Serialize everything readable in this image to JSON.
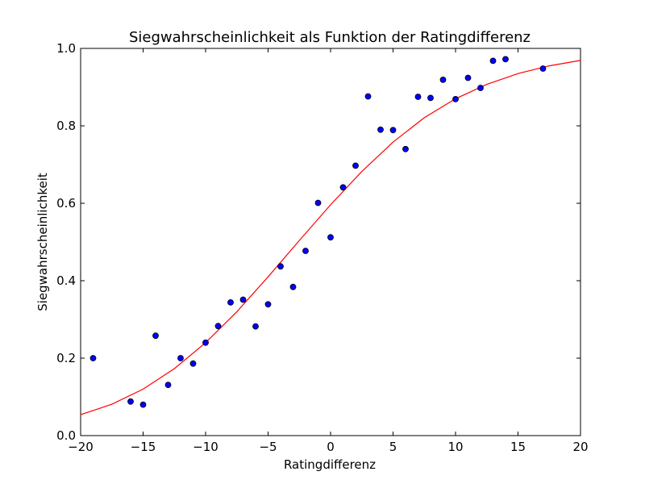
{
  "chart_data": {
    "type": "scatter",
    "title": "Siegwahrscheinlichkeit als Funktion der Ratingdifferenz",
    "xlabel": "Ratingdifferenz",
    "ylabel": "Siegwahrscheinlichkeit",
    "xlim": [
      -20,
      20
    ],
    "ylim": [
      0.0,
      1.0
    ],
    "xticks": [
      "−20",
      "−15",
      "−10",
      "−5",
      "0",
      "5",
      "10",
      "15",
      "20"
    ],
    "yticks": [
      "0.0",
      "0.2",
      "0.4",
      "0.6",
      "0.8",
      "1.0"
    ],
    "grid": false,
    "legend": "none",
    "colors": {
      "points": "#0000ff",
      "curve": "#ff0000"
    },
    "series": [
      {
        "type": "scatter",
        "x": [
          -19,
          -16,
          -15,
          -14,
          -13,
          -12,
          -11,
          -10,
          -9,
          -8,
          -7,
          -6,
          -5,
          -4,
          -3,
          -2,
          -1,
          0,
          1,
          2,
          3,
          4,
          5,
          6,
          7,
          8,
          9,
          10,
          11,
          12,
          13,
          14,
          17
        ],
        "y": [
          0.2,
          0.088,
          0.08,
          0.258,
          0.131,
          0.2,
          0.186,
          0.24,
          0.283,
          0.344,
          0.351,
          0.282,
          0.339,
          0.437,
          0.384,
          0.477,
          0.601,
          0.512,
          0.641,
          0.697,
          0.876,
          0.79,
          0.789,
          0.74,
          0.875,
          0.872,
          0.919,
          0.869,
          0.924,
          0.898,
          0.968,
          0.972,
          0.948
        ]
      },
      {
        "type": "line",
        "x": [
          -20,
          -17.5,
          -15,
          -12.5,
          -10,
          -7.5,
          -5,
          -2.5,
          0,
          2.5,
          5,
          7.5,
          10,
          12.5,
          15,
          17.5,
          20
        ],
        "y": [
          0.054,
          0.081,
          0.12,
          0.173,
          0.24,
          0.32,
          0.41,
          0.504,
          0.596,
          0.682,
          0.758,
          0.821,
          0.87,
          0.907,
          0.935,
          0.955,
          0.969
        ]
      }
    ]
  }
}
